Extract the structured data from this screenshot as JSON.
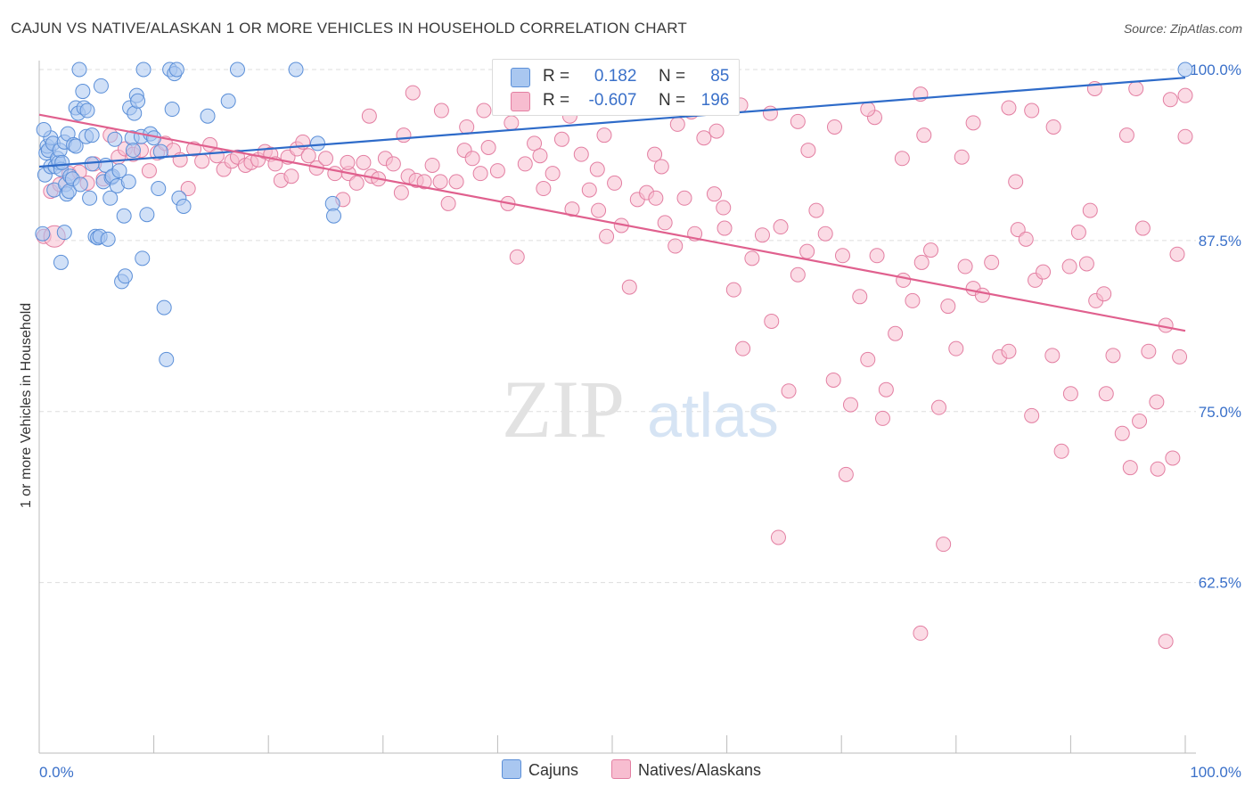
{
  "title": "CAJUN VS NATIVE/ALASKAN 1 OR MORE VEHICLES IN HOUSEHOLD CORRELATION CHART",
  "source": "Source: ZipAtlas.com",
  "watermark": {
    "zip": "ZIP",
    "atlas": "atlas"
  },
  "legend": {
    "series": [
      {
        "r_label": "R =",
        "r_value": "0.182",
        "n_label": "N =",
        "n_value": "85"
      },
      {
        "r_label": "R =",
        "r_value": "-0.607",
        "n_label": "N =",
        "n_value": "196"
      }
    ]
  },
  "bottom_legend": {
    "cajuns": "Cajuns",
    "natives": "Natives/Alaskans"
  },
  "colors": {
    "blue_fill": "#a9c7f0",
    "blue_stroke": "#5b8fd8",
    "blue_line": "#2e6bc9",
    "pink_fill": "#f7bdd0",
    "pink_stroke": "#e37fa2",
    "pink_line": "#e0608e",
    "tick_label": "#3a70c9",
    "grid": "#dddddd"
  },
  "chart_data": {
    "type": "scatter",
    "title": "CAJUN VS NATIVE/ALASKAN 1 OR MORE VEHICLES IN HOUSEHOLD CORRELATION CHART",
    "xlabel": "",
    "ylabel": "1 or more Vehicles in Household",
    "xlim": [
      0,
      100
    ],
    "ylim": [
      50.5,
      101
    ],
    "x_tick_labels": [
      "0.0%",
      "100.0%"
    ],
    "y_ticks": [
      100,
      87.5,
      75,
      62.5
    ],
    "y_tick_labels": [
      "100.0%",
      "87.5%",
      "75.0%",
      "62.5%"
    ],
    "grid": true,
    "legend_position": "top-center",
    "series": [
      {
        "name": "Cajuns",
        "r": 0.182,
        "n": 85,
        "trend": {
          "x": [
            0,
            100
          ],
          "y": [
            92.9,
            99.4
          ]
        },
        "points": [
          [
            0.3,
            88.0
          ],
          [
            0.5,
            92.3
          ],
          [
            0.6,
            93.9
          ],
          [
            0.7,
            94.4
          ],
          [
            0.8,
            94.1
          ],
          [
            1.0,
            95.0
          ],
          [
            1.0,
            92.9
          ],
          [
            1.2,
            94.6
          ],
          [
            1.3,
            91.2
          ],
          [
            1.4,
            92.9
          ],
          [
            1.6,
            93.5
          ],
          [
            1.7,
            93.2
          ],
          [
            1.8,
            94.1
          ],
          [
            1.9,
            92.7
          ],
          [
            2.0,
            93.2
          ],
          [
            2.2,
            94.7
          ],
          [
            2.3,
            91.6
          ],
          [
            2.4,
            90.9
          ],
          [
            2.5,
            95.3
          ],
          [
            2.6,
            91.1
          ],
          [
            2.7,
            92.2
          ],
          [
            2.9,
            92.0
          ],
          [
            3.0,
            94.5
          ],
          [
            3.2,
            94.4
          ],
          [
            3.2,
            97.2
          ],
          [
            3.4,
            96.8
          ],
          [
            3.6,
            91.6
          ],
          [
            3.8,
            98.4
          ],
          [
            3.9,
            97.2
          ],
          [
            4.1,
            95.1
          ],
          [
            4.2,
            97.0
          ],
          [
            4.4,
            90.6
          ],
          [
            4.6,
            95.2
          ],
          [
            4.9,
            87.8
          ],
          [
            5.1,
            87.7
          ],
          [
            5.3,
            87.8
          ],
          [
            5.4,
            98.8
          ],
          [
            5.6,
            91.8
          ],
          [
            5.8,
            93.0
          ],
          [
            6.0,
            87.6
          ],
          [
            6.2,
            90.6
          ],
          [
            6.3,
            92.1
          ],
          [
            6.4,
            92.2
          ],
          [
            6.8,
            91.5
          ],
          [
            7.0,
            92.6
          ],
          [
            7.2,
            84.5
          ],
          [
            7.4,
            89.3
          ],
          [
            7.5,
            84.9
          ],
          [
            7.8,
            91.8
          ],
          [
            7.9,
            97.2
          ],
          [
            8.1,
            95.0
          ],
          [
            8.2,
            94.1
          ],
          [
            8.3,
            96.8
          ],
          [
            8.5,
            98.1
          ],
          [
            8.6,
            97.7
          ],
          [
            8.9,
            95.1
          ],
          [
            9.0,
            86.2
          ],
          [
            9.4,
            89.4
          ],
          [
            9.7,
            95.3
          ],
          [
            10.0,
            95.0
          ],
          [
            10.4,
            91.3
          ],
          [
            10.6,
            94.0
          ],
          [
            10.9,
            82.6
          ],
          [
            11.1,
            78.8
          ],
          [
            11.4,
            100.0
          ],
          [
            11.6,
            97.1
          ],
          [
            11.8,
            99.7
          ],
          [
            12.0,
            100.0
          ],
          [
            12.2,
            90.6
          ],
          [
            12.6,
            90.0
          ],
          [
            3.5,
            100.0
          ],
          [
            9.1,
            100.0
          ],
          [
            14.7,
            96.6
          ],
          [
            16.5,
            97.7
          ],
          [
            17.3,
            100.0
          ],
          [
            22.4,
            100.0
          ],
          [
            25.6,
            90.2
          ],
          [
            25.7,
            89.3
          ],
          [
            24.3,
            94.6
          ],
          [
            100.0,
            100.0
          ],
          [
            0.4,
            95.6
          ],
          [
            1.9,
            85.9
          ],
          [
            2.2,
            88.1
          ],
          [
            4.6,
            93.1
          ],
          [
            6.6,
            94.9
          ]
        ]
      },
      {
        "name": "Natives/Alaskans",
        "r": -0.607,
        "n": 196,
        "trend": {
          "x": [
            0,
            100
          ],
          "y": [
            96.7,
            80.9
          ]
        },
        "points": [
          [
            0.4,
            87.8
          ],
          [
            1.0,
            91.1
          ],
          [
            1.8,
            91.6
          ],
          [
            2.6,
            92.4
          ],
          [
            3.5,
            92.5
          ],
          [
            4.2,
            91.7
          ],
          [
            4.8,
            93.1
          ],
          [
            5.6,
            92.0
          ],
          [
            6.2,
            95.2
          ],
          [
            6.9,
            93.6
          ],
          [
            7.5,
            94.2
          ],
          [
            8.2,
            93.8
          ],
          [
            8.9,
            94.1
          ],
          [
            9.6,
            92.6
          ],
          [
            10.3,
            93.9
          ],
          [
            11.0,
            94.6
          ],
          [
            11.7,
            94.1
          ],
          [
            12.3,
            93.4
          ],
          [
            13.0,
            91.3
          ],
          [
            13.5,
            94.2
          ],
          [
            14.2,
            93.3
          ],
          [
            14.9,
            94.5
          ],
          [
            15.5,
            93.7
          ],
          [
            16.1,
            92.7
          ],
          [
            16.8,
            93.3
          ],
          [
            17.3,
            93.6
          ],
          [
            18.0,
            93.0
          ],
          [
            18.5,
            93.2
          ],
          [
            19.1,
            93.4
          ],
          [
            19.7,
            94.0
          ],
          [
            20.2,
            93.8
          ],
          [
            20.6,
            93.1
          ],
          [
            21.1,
            91.9
          ],
          [
            21.7,
            93.6
          ],
          [
            22.0,
            92.2
          ],
          [
            22.5,
            94.2
          ],
          [
            23.0,
            94.7
          ],
          [
            23.5,
            93.7
          ],
          [
            24.2,
            92.8
          ],
          [
            25.0,
            93.5
          ],
          [
            25.8,
            92.4
          ],
          [
            26.5,
            90.5
          ],
          [
            27.0,
            92.4
          ],
          [
            27.7,
            91.7
          ],
          [
            28.3,
            93.2
          ],
          [
            29.0,
            92.2
          ],
          [
            29.6,
            92.0
          ],
          [
            30.2,
            93.5
          ],
          [
            30.9,
            93.1
          ],
          [
            31.6,
            91.0
          ],
          [
            32.2,
            92.2
          ],
          [
            32.9,
            91.9
          ],
          [
            33.6,
            91.8
          ],
          [
            34.3,
            93.0
          ],
          [
            35.0,
            91.8
          ],
          [
            35.7,
            90.2
          ],
          [
            36.4,
            91.8
          ],
          [
            37.1,
            94.1
          ],
          [
            37.8,
            93.5
          ],
          [
            38.5,
            92.4
          ],
          [
            39.2,
            94.3
          ],
          [
            40.0,
            92.6
          ],
          [
            40.9,
            90.2
          ],
          [
            41.7,
            86.3
          ],
          [
            42.4,
            93.1
          ],
          [
            43.2,
            94.6
          ],
          [
            44.0,
            91.3
          ],
          [
            44.8,
            92.4
          ],
          [
            45.6,
            94.9
          ],
          [
            46.5,
            89.8
          ],
          [
            47.3,
            93.8
          ],
          [
            48.0,
            91.2
          ],
          [
            48.8,
            89.7
          ],
          [
            49.5,
            87.8
          ],
          [
            50.2,
            91.7
          ],
          [
            50.8,
            88.6
          ],
          [
            51.5,
            84.1
          ],
          [
            52.2,
            90.5
          ],
          [
            53.0,
            91.0
          ],
          [
            53.8,
            90.6
          ],
          [
            54.6,
            88.8
          ],
          [
            55.5,
            87.1
          ],
          [
            56.3,
            90.6
          ],
          [
            57.2,
            88.0
          ],
          [
            58.0,
            95.0
          ],
          [
            58.9,
            90.9
          ],
          [
            59.7,
            89.9
          ],
          [
            60.6,
            83.9
          ],
          [
            61.4,
            79.6
          ],
          [
            62.2,
            86.2
          ],
          [
            63.1,
            87.9
          ],
          [
            63.9,
            81.6
          ],
          [
            64.7,
            88.5
          ],
          [
            65.4,
            76.5
          ],
          [
            66.2,
            85.0
          ],
          [
            67.0,
            86.7
          ],
          [
            67.8,
            89.7
          ],
          [
            68.6,
            88.0
          ],
          [
            69.3,
            77.3
          ],
          [
            70.1,
            86.4
          ],
          [
            70.8,
            75.5
          ],
          [
            71.6,
            83.4
          ],
          [
            72.3,
            78.8
          ],
          [
            73.1,
            86.4
          ],
          [
            73.9,
            76.6
          ],
          [
            74.7,
            80.7
          ],
          [
            75.4,
            84.6
          ],
          [
            76.2,
            83.1
          ],
          [
            77.0,
            85.9
          ],
          [
            77.8,
            86.8
          ],
          [
            78.5,
            75.3
          ],
          [
            79.3,
            82.7
          ],
          [
            80.0,
            79.6
          ],
          [
            80.8,
            85.6
          ],
          [
            81.5,
            84.0
          ],
          [
            82.3,
            83.5
          ],
          [
            83.1,
            85.9
          ],
          [
            83.8,
            79.0
          ],
          [
            84.6,
            79.4
          ],
          [
            85.4,
            88.3
          ],
          [
            86.1,
            87.6
          ],
          [
            86.9,
            84.6
          ],
          [
            87.6,
            85.2
          ],
          [
            88.4,
            79.1
          ],
          [
            89.2,
            72.1
          ],
          [
            89.9,
            85.6
          ],
          [
            90.7,
            88.1
          ],
          [
            91.4,
            85.8
          ],
          [
            92.2,
            83.1
          ],
          [
            92.9,
            83.6
          ],
          [
            93.7,
            79.1
          ],
          [
            94.5,
            73.4
          ],
          [
            95.2,
            70.9
          ],
          [
            96.0,
            74.3
          ],
          [
            96.8,
            79.4
          ],
          [
            97.5,
            75.7
          ],
          [
            98.3,
            81.3
          ],
          [
            98.9,
            71.6
          ],
          [
            99.5,
            79.0
          ],
          [
            59.8,
            88.4
          ],
          [
            64.5,
            65.8
          ],
          [
            70.4,
            70.4
          ],
          [
            73.6,
            74.5
          ],
          [
            76.9,
            58.8
          ],
          [
            78.9,
            65.3
          ],
          [
            98.3,
            58.2
          ],
          [
            86.6,
            74.7
          ],
          [
            90.0,
            76.3
          ],
          [
            93.1,
            76.3
          ],
          [
            97.6,
            70.8
          ],
          [
            32.6,
            98.3
          ],
          [
            38.8,
            97.0
          ],
          [
            44.3,
            97.4
          ],
          [
            52.0,
            97.4
          ],
          [
            56.9,
            96.9
          ],
          [
            61.2,
            97.4
          ],
          [
            66.2,
            96.2
          ],
          [
            72.9,
            96.5
          ],
          [
            81.5,
            96.1
          ],
          [
            88.5,
            95.8
          ],
          [
            94.9,
            95.2
          ],
          [
            100.0,
            95.1
          ],
          [
            46.3,
            96.6
          ],
          [
            55.7,
            96.0
          ],
          [
            67.1,
            94.1
          ],
          [
            72.3,
            97.1
          ],
          [
            77.2,
            95.2
          ],
          [
            86.6,
            97.0
          ],
          [
            95.7,
            98.6
          ],
          [
            100.0,
            98.1
          ],
          [
            28.8,
            96.6
          ],
          [
            35.1,
            97.0
          ],
          [
            41.2,
            96.1
          ],
          [
            49.3,
            95.2
          ],
          [
            53.7,
            93.8
          ],
          [
            59.1,
            95.5
          ],
          [
            63.8,
            96.8
          ],
          [
            69.4,
            95.8
          ],
          [
            75.3,
            93.5
          ],
          [
            80.5,
            93.6
          ],
          [
            85.2,
            91.8
          ],
          [
            91.7,
            89.7
          ],
          [
            96.3,
            88.4
          ],
          [
            99.3,
            86.5
          ],
          [
            42.7,
            98.8
          ],
          [
            60.4,
            98.6
          ],
          [
            76.9,
            98.2
          ],
          [
            84.6,
            97.2
          ],
          [
            92.1,
            98.6
          ],
          [
            98.7,
            97.8
          ],
          [
            26.9,
            93.2
          ],
          [
            31.8,
            95.2
          ],
          [
            37.3,
            95.8
          ],
          [
            43.7,
            93.7
          ],
          [
            48.7,
            92.7
          ],
          [
            54.3,
            92.9
          ]
        ]
      }
    ]
  }
}
